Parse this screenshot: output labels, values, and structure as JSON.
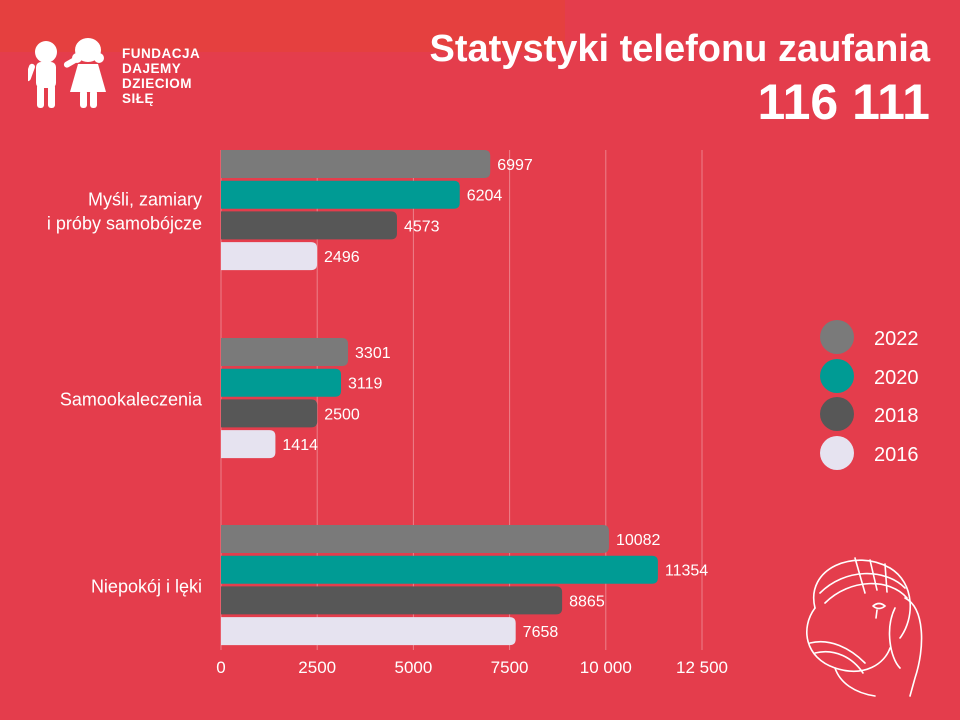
{
  "logo": {
    "lines": [
      "FUNDACJA",
      "DAJEMY",
      "DZIECIOM",
      "SIŁĘ"
    ]
  },
  "header": {
    "title": "Statystyki telefonu zaufania",
    "number": "116 111"
  },
  "chart_data": {
    "type": "bar",
    "orientation": "horizontal",
    "categories": [
      "Myśli, zamiary\ni próby samobójcze",
      "Samookaleczenia",
      "Niepokój i lęki"
    ],
    "series": [
      {
        "name": "2022",
        "color": "#7a7a7a",
        "values": [
          6997,
          3301,
          10082
        ]
      },
      {
        "name": "2020",
        "color": "#009b94",
        "values": [
          6204,
          3119,
          11354
        ]
      },
      {
        "name": "2018",
        "color": "#575757",
        "values": [
          4573,
          2500,
          8865
        ]
      },
      {
        "name": "2016",
        "color": "#e6e3f0",
        "values": [
          2496,
          1414,
          7658
        ]
      }
    ],
    "xlim": [
      0,
      12500
    ],
    "xticks": [
      0,
      2500,
      5000,
      7500,
      10000,
      12500
    ],
    "xtick_labels": [
      "0",
      "2500",
      "5000",
      "7500",
      "10 000",
      "12 500"
    ],
    "grid": true,
    "legend_position": "right",
    "data_labels": true
  }
}
